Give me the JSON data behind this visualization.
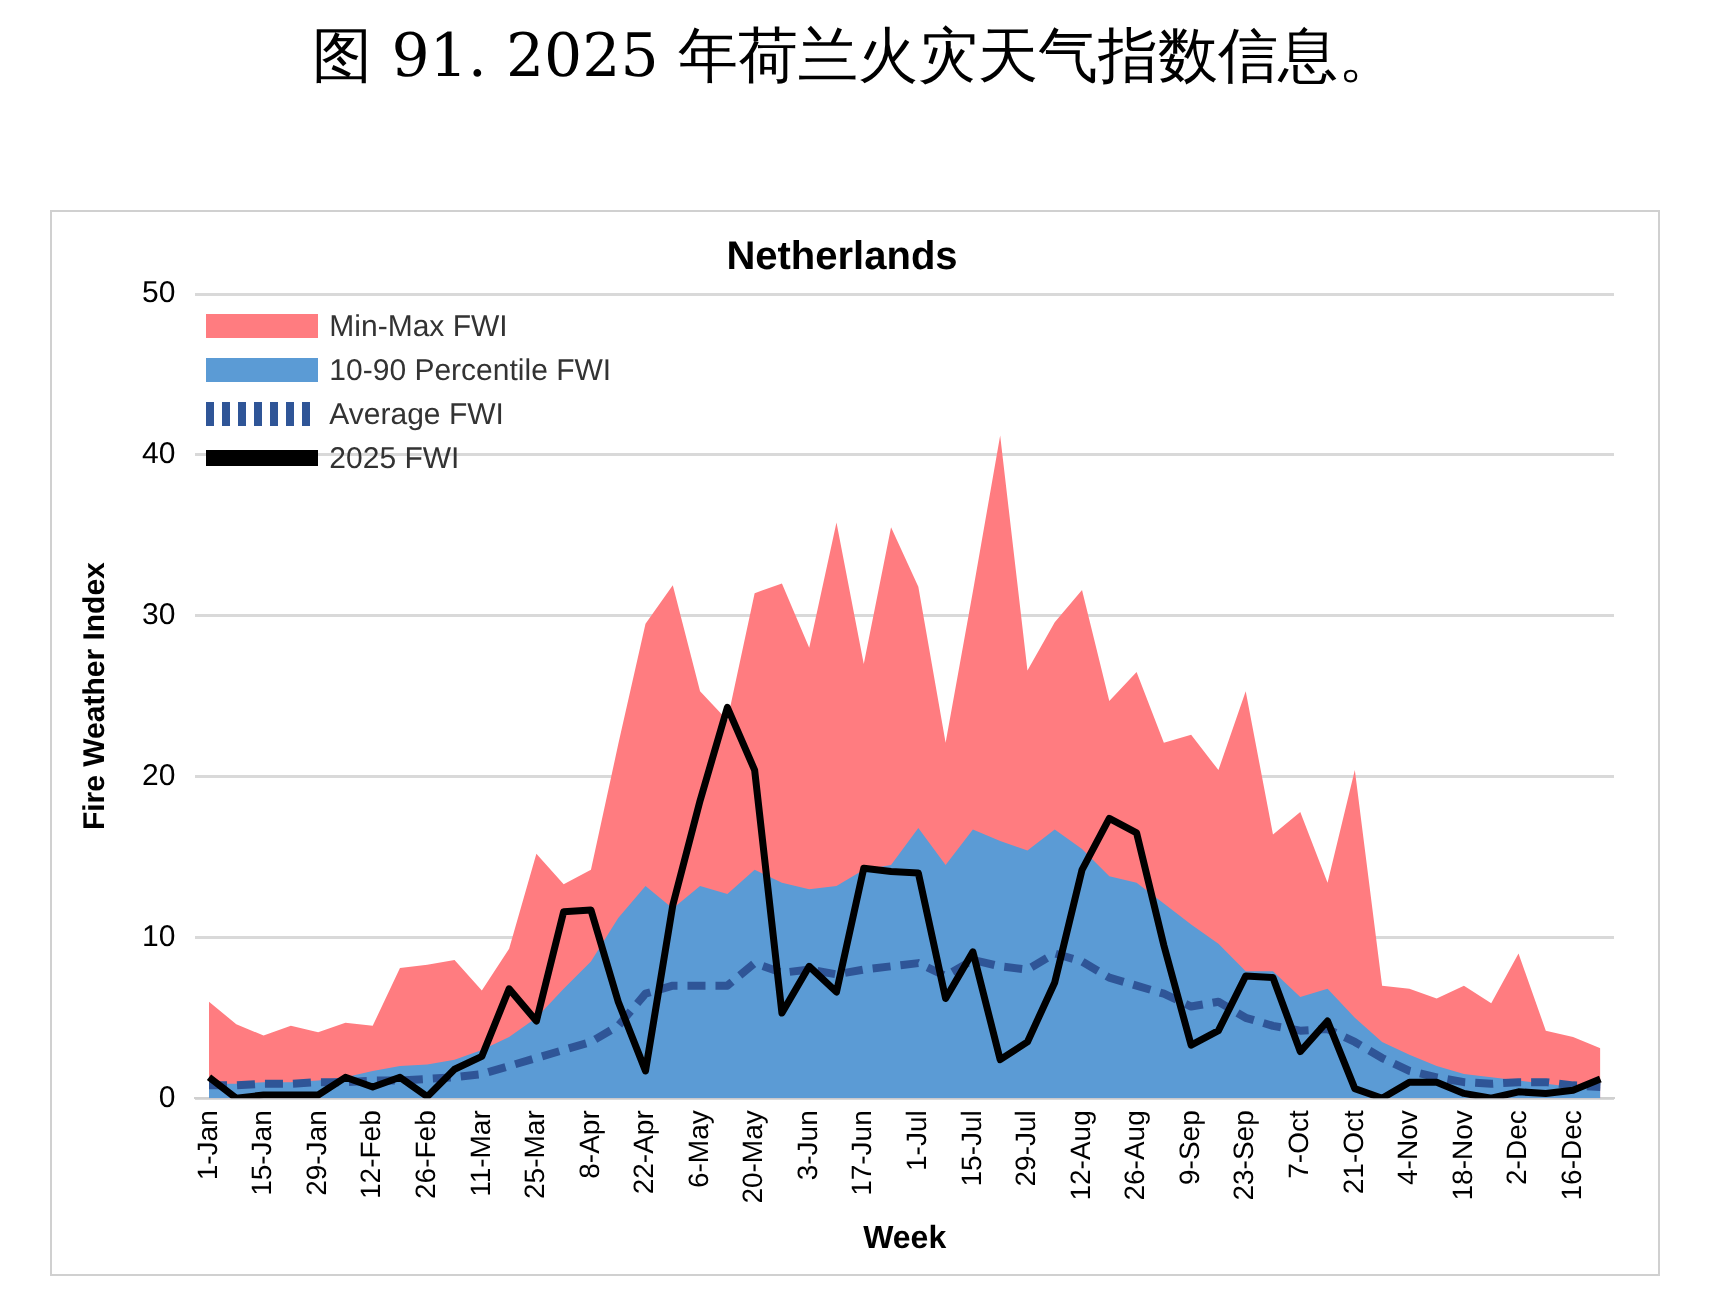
{
  "chart_data": {
    "type": "area",
    "title": "Netherlands",
    "xlabel": "Week",
    "ylabel": "Fire Weather Index",
    "annotations": [
      "图 91. 2025 年荷兰火灾天气指数信息。"
    ],
    "categories": [
      "1-Jan",
      null,
      "15-Jan",
      null,
      "29-Jan",
      null,
      "12-Feb",
      null,
      "26-Feb",
      null,
      "11-Mar",
      null,
      "25-Mar",
      null,
      "8-Apr",
      null,
      "22-Apr",
      null,
      "6-May",
      null,
      "20-May",
      null,
      "3-Jun",
      null,
      "17-Jun",
      null,
      "1-Jul",
      null,
      "15-Jul",
      null,
      "29-Jul",
      null,
      "12-Aug",
      null,
      "26-Aug",
      null,
      "9-Sep",
      null,
      "23-Sep",
      null,
      "7-Oct",
      null,
      "21-Oct",
      null,
      "4-Nov",
      null,
      "18-Nov",
      null,
      "2-Dec",
      null,
      "16-Dec",
      null
    ],
    "series": [
      {
        "name": "Min-Max FWI",
        "color": "#ff7c80",
        "values": [
          6.0,
          4.6,
          3.9,
          4.5,
          4.1,
          4.7,
          4.5,
          8.1,
          8.3,
          8.6,
          6.7,
          9.3,
          15.2,
          13.3,
          14.2,
          22,
          29.5,
          31.9,
          25.3,
          23.5,
          31.4,
          32,
          28,
          35.8,
          27,
          35.5,
          31.8,
          22.1,
          31.5,
          41.2,
          26.6,
          29.6,
          31.6,
          24.7,
          26.5,
          22.1,
          22.6,
          20.4,
          25.3,
          16.4,
          17.8,
          13.4,
          20.4,
          7,
          6.8,
          6.2,
          7,
          5.9,
          9,
          4.2,
          3.8,
          3.1
        ]
      },
      {
        "name": "10-90 Percentile FWI",
        "color": "#5b9bd5",
        "values": [
          0.9,
          0.9,
          1,
          1,
          1.1,
          1.3,
          1.7,
          2,
          2.1,
          2.4,
          3,
          3.8,
          5,
          6.8,
          8.5,
          11.2,
          13.2,
          11.8,
          13.2,
          12.7,
          14.2,
          13.4,
          13,
          13.2,
          14.2,
          14.5,
          16.8,
          14.5,
          16.7,
          16,
          15.4,
          16.7,
          15.5,
          13.8,
          13.4,
          12.1,
          10.8,
          9.6,
          7.9,
          7.9,
          6.3,
          6.8,
          5,
          3.5,
          2.7,
          2,
          1.5,
          1.3,
          1.1,
          0.9,
          0.7,
          0.7
        ]
      },
      {
        "name": "Average FWI",
        "type": "line",
        "line_style": "dashed",
        "color": "#2f5597",
        "values": [
          0.8,
          0.8,
          0.9,
          0.9,
          1,
          1,
          1.1,
          1.1,
          1.2,
          1.3,
          1.5,
          2,
          2.5,
          3,
          3.5,
          4.5,
          6.5,
          7,
          7,
          7,
          8.4,
          7.8,
          8,
          7.7,
          8,
          8.2,
          8.4,
          7.6,
          8.6,
          8.2,
          8,
          9,
          8.5,
          7.5,
          7,
          6.5,
          5.7,
          6,
          5,
          4.5,
          4.2,
          4.3,
          3.5,
          2.5,
          1.7,
          1.3,
          1,
          0.9,
          1,
          1,
          0.8,
          0.7
        ]
      },
      {
        "name": "2025 FWI",
        "type": "line",
        "line_style": "solid",
        "color": "#000000",
        "values": [
          1.3,
          0,
          0.2,
          0.2,
          0.2,
          1.3,
          0.7,
          1.3,
          0.1,
          1.8,
          2.6,
          6.8,
          4.8,
          11.6,
          11.7,
          6,
          1.7,
          12,
          18.5,
          24.3,
          20.4,
          5.3,
          8.2,
          6.6,
          14.3,
          14.1,
          14,
          6.2,
          9.1,
          2.4,
          3.5,
          7.2,
          14.2,
          17.4,
          16.5,
          9.5,
          3.3,
          4.2,
          7.6,
          7.5,
          2.9,
          4.8,
          0.6,
          0,
          1,
          1,
          0.3,
          0,
          0.4,
          0.3,
          0.5,
          1.2
        ]
      }
    ],
    "ylim": [
      0,
      50
    ],
    "yticks": [
      0,
      10,
      20,
      30,
      40,
      50
    ],
    "grid": "y",
    "legend": "top left",
    "marker": "none"
  }
}
